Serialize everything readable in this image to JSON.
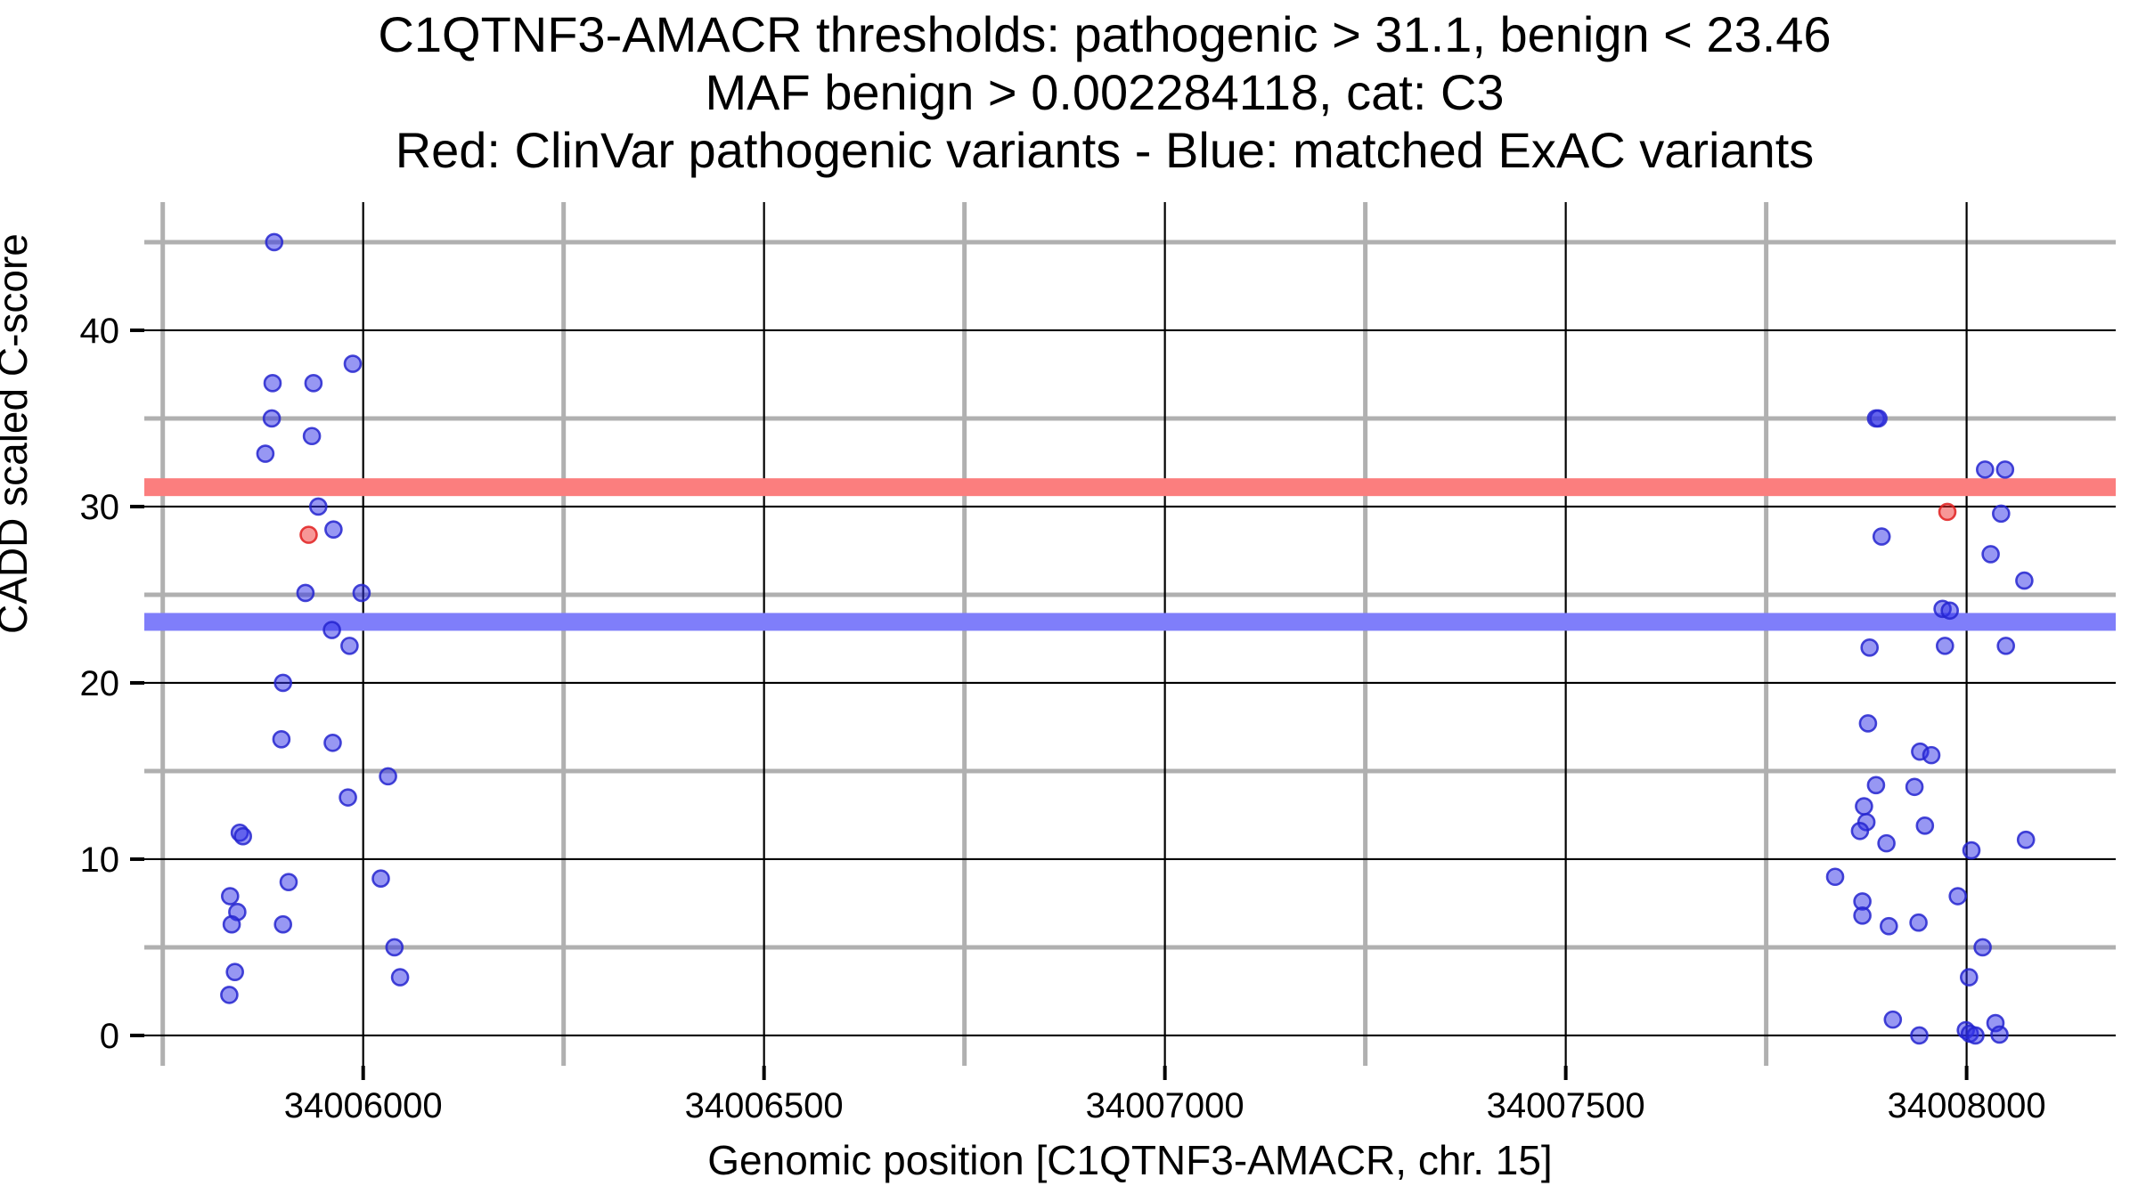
{
  "chart_data": {
    "type": "scatter",
    "title_lines": [
      "C1QTNF3-AMACR thresholds: pathogenic > 31.1, benign < 23.46",
      "MAF benign > 0.002284118, cat: C3",
      "Red: ClinVar pathogenic variants - Blue: matched ExAC variants"
    ],
    "xlabel": "Genomic position [C1QTNF3-AMACR, chr. 15]",
    "ylabel": "CADD scaled C-score",
    "x_axis": {
      "range": [
        34005727,
        34008186
      ],
      "ticks": [
        34006000,
        34006500,
        34007000,
        34007500,
        34008000
      ],
      "minor_ticks": [
        34005750,
        34006250,
        34006750,
        34007250,
        34007750
      ]
    },
    "y_axis": {
      "range": [
        -1.72,
        47.27
      ],
      "ticks": [
        0,
        10,
        20,
        30,
        40
      ],
      "minor_ticks": [
        5,
        15,
        25,
        35,
        45
      ]
    },
    "grid": {
      "major_color": "#000000",
      "minor_color": "#b0b0b0"
    },
    "thresholds": {
      "pathogenic": {
        "value": 31.1,
        "band_color": "#FB7E7E"
      },
      "benign": {
        "value": 23.46,
        "band_color": "#7F7EFA"
      }
    },
    "series": [
      {
        "name": "ClinVar pathogenic variants",
        "color": "#F03030",
        "stroke": "#E02020",
        "points": [
          [
            34005932,
            28.4
          ],
          [
            34007976,
            29.7
          ]
        ]
      },
      {
        "name": "matched ExAC variants",
        "color": "#3030E8",
        "stroke": "#2525CF",
        "points": [
          [
            34005889,
            45.0
          ],
          [
            34005887,
            37.0
          ],
          [
            34005938,
            37.0
          ],
          [
            34005987,
            38.1
          ],
          [
            34005886,
            35.0
          ],
          [
            34005936,
            34.0
          ],
          [
            34005878,
            33.0
          ],
          [
            34005944,
            30.0
          ],
          [
            34005963,
            28.7
          ],
          [
            34005928,
            25.1
          ],
          [
            34005998,
            25.1
          ],
          [
            34005961,
            23.0
          ],
          [
            34005983,
            22.1
          ],
          [
            34005900,
            20.0
          ],
          [
            34005898,
            16.8
          ],
          [
            34005962,
            16.6
          ],
          [
            34006031,
            14.7
          ],
          [
            34005981,
            13.5
          ],
          [
            34005846,
            11.5
          ],
          [
            34005850,
            11.3
          ],
          [
            34005907,
            8.7
          ],
          [
            34006022,
            8.9
          ],
          [
            34005834,
            7.9
          ],
          [
            34005843,
            7.0
          ],
          [
            34005836,
            6.3
          ],
          [
            34005900,
            6.3
          ],
          [
            34006039,
            5.0
          ],
          [
            34005840,
            3.6
          ],
          [
            34006046,
            3.3
          ],
          [
            34005833,
            2.3
          ],
          [
            34007887,
            35.0
          ],
          [
            34007890,
            35.0
          ],
          [
            34008023,
            32.1
          ],
          [
            34008048,
            32.1
          ],
          [
            34008043,
            29.6
          ],
          [
            34007894,
            28.3
          ],
          [
            34008030,
            27.3
          ],
          [
            34008072,
            25.8
          ],
          [
            34007970,
            24.2
          ],
          [
            34007979,
            24.1
          ],
          [
            34007879,
            22.0
          ],
          [
            34007973,
            22.1
          ],
          [
            34008049,
            22.1
          ],
          [
            34007877,
            17.7
          ],
          [
            34007942,
            16.1
          ],
          [
            34007956,
            15.9
          ],
          [
            34007887,
            14.2
          ],
          [
            34007935,
            14.1
          ],
          [
            34007872,
            13.0
          ],
          [
            34007875,
            12.1
          ],
          [
            34007867,
            11.6
          ],
          [
            34007948,
            11.9
          ],
          [
            34007900,
            10.9
          ],
          [
            34008006,
            10.5
          ],
          [
            34008074,
            11.1
          ],
          [
            34007836,
            9.0
          ],
          [
            34007870,
            7.6
          ],
          [
            34007870,
            6.8
          ],
          [
            34007989,
            7.9
          ],
          [
            34007903,
            6.2
          ],
          [
            34007940,
            6.4
          ],
          [
            34008020,
            5.0
          ],
          [
            34008003,
            3.3
          ],
          [
            34007908,
            0.9
          ],
          [
            34007941,
            0.0
          ],
          [
            34007999,
            0.3
          ],
          [
            34008004,
            0.1
          ],
          [
            34008011,
            0.0
          ],
          [
            34008036,
            0.7
          ],
          [
            34008041,
            0.05
          ]
        ]
      }
    ]
  }
}
